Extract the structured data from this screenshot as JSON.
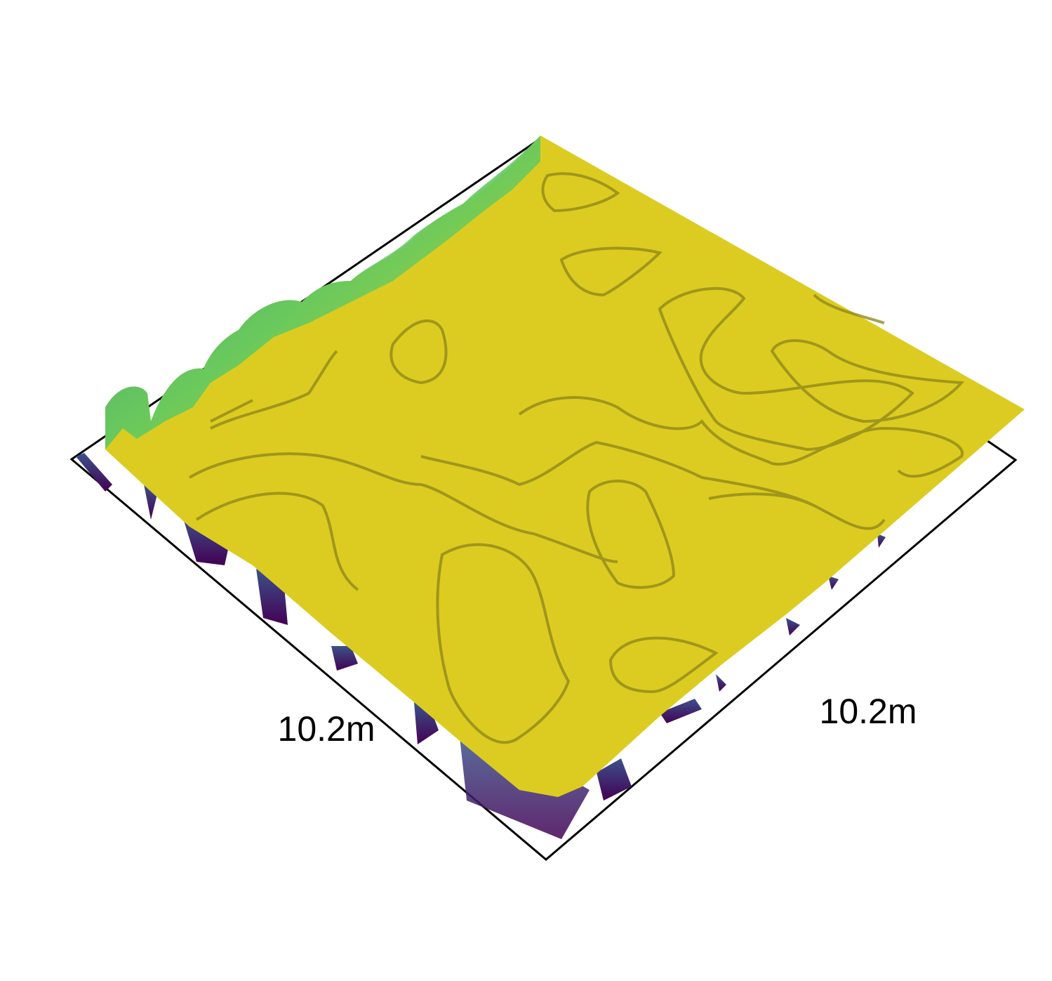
{
  "chart_data": {
    "type": "surface",
    "title": "",
    "x_axis": {
      "label": "10.2m",
      "extent": 10.2,
      "unit": "m"
    },
    "y_axis": {
      "label": "10.2m",
      "extent": 10.2,
      "unit": "m"
    },
    "z_axis": {
      "label": ""
    },
    "colormap": "viridis",
    "colors": {
      "surface_top": "#dccc22",
      "surface_high": "#fde725",
      "surface_mid": "#21918c",
      "surface_low": "#440154",
      "frame": "#000000"
    },
    "grid": false,
    "legend": "none"
  }
}
